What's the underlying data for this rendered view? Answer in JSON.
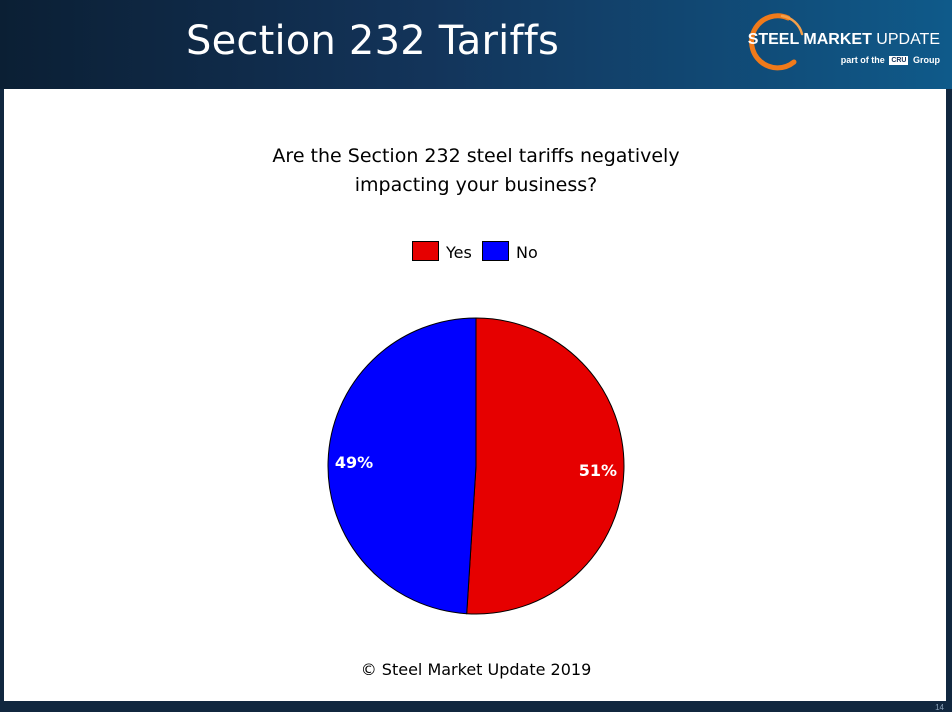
{
  "header": {
    "title": "Section 232 Tariffs",
    "logo": {
      "brand_bold": "STEEL MARKET",
      "brand_light": " UPDATE",
      "sub_before": "part of the",
      "sub_box": "CRU",
      "sub_after": "Group"
    }
  },
  "chart_data": {
    "type": "pie",
    "title": [
      "Are the Section 232 steel tariffs negatively",
      "impacting your business?"
    ],
    "categories": [
      "Yes",
      "No"
    ],
    "values": [
      51,
      49
    ],
    "labels": [
      "51%",
      "49%"
    ],
    "colors": [
      "#e60000",
      "#0000ff"
    ],
    "legend_position": "top",
    "start_angle": "12 o'clock, clockwise"
  },
  "footer": {
    "credit": "© Steel Market Update 2019",
    "slide_number": "14"
  }
}
